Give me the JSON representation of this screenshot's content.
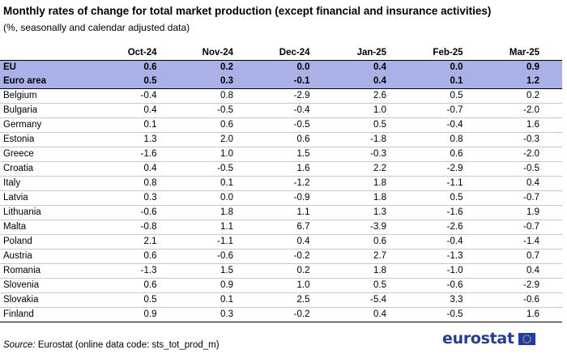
{
  "title": "Monthly rates of change for total market production (except financial and insurance activities)",
  "subtitle": "(%, seasonally and calendar adjusted data)",
  "table": {
    "columns": [
      "Oct-24",
      "Nov-24",
      "Dec-24",
      "Jan-25",
      "Feb-25",
      "Mar-25"
    ],
    "aggregates": [
      {
        "name": "EU",
        "values": [
          "0.6",
          "0.2",
          "0.0",
          "0.4",
          "0.0",
          "0.9"
        ]
      },
      {
        "name": "Euro area",
        "values": [
          "0.5",
          "0.3",
          "-0.1",
          "0.4",
          "0.1",
          "1.2"
        ]
      }
    ],
    "countries": [
      {
        "name": "Belgium",
        "values": [
          "-0.4",
          "0.8",
          "-2.9",
          "2.6",
          "0.5",
          "0.2"
        ]
      },
      {
        "name": "Bulgaria",
        "values": [
          "0.4",
          "-0.5",
          "-0.4",
          "1.0",
          "-0.7",
          "-2.0"
        ]
      },
      {
        "name": "Germany",
        "values": [
          "0.1",
          "0.6",
          "-0.5",
          "0.5",
          "-0.4",
          "1.6"
        ]
      },
      {
        "name": "Estonia",
        "values": [
          "1.3",
          "2.0",
          "0.6",
          "-1.8",
          "0.8",
          "-0.3"
        ]
      },
      {
        "name": "Greece",
        "values": [
          "-1.6",
          "1.0",
          "1.5",
          "-0.3",
          "0.6",
          "-2.0"
        ]
      },
      {
        "name": "Croatia",
        "values": [
          "0.4",
          "-0.5",
          "1.6",
          "2.2",
          "-2.9",
          "-0.5"
        ]
      },
      {
        "name": "Italy",
        "values": [
          "0.8",
          "0.1",
          "-1.2",
          "1.8",
          "-1.1",
          "0.4"
        ]
      },
      {
        "name": "Latvia",
        "values": [
          "0.3",
          "0.0",
          "-0.9",
          "1.8",
          "0.5",
          "-0.7"
        ]
      },
      {
        "name": "Lithuania",
        "values": [
          "-0.6",
          "1.8",
          "1.1",
          "1.3",
          "-1.6",
          "1.9"
        ]
      },
      {
        "name": "Malta",
        "values": [
          "-0.8",
          "1.1",
          "6.7",
          "-3.9",
          "-2.6",
          "-0.7"
        ]
      },
      {
        "name": "Poland",
        "values": [
          "2.1",
          "-1.1",
          "0.4",
          "0.6",
          "-0.4",
          "-1.4"
        ]
      },
      {
        "name": "Austria",
        "values": [
          "0.6",
          "-0.6",
          "-0.2",
          "2.7",
          "-1.3",
          "0.7"
        ]
      },
      {
        "name": "Romania",
        "values": [
          "-1.3",
          "1.5",
          "0.2",
          "1.8",
          "-1.0",
          "0.4"
        ]
      },
      {
        "name": "Slovenia",
        "values": [
          "0.6",
          "0.9",
          "1.0",
          "0.5",
          "-0.6",
          "-2.9"
        ]
      },
      {
        "name": "Slovakia",
        "values": [
          "0.5",
          "0.1",
          "2.5",
          "-5.4",
          "3.3",
          "-0.6"
        ]
      },
      {
        "name": "Finland",
        "values": [
          "0.9",
          "0.3",
          "-0.2",
          "0.4",
          "-0.5",
          "1.6"
        ]
      }
    ]
  },
  "source": {
    "label": "Source:",
    "text": "Eurostat (online data code: sts_tot_prod_m)"
  },
  "logo": {
    "text": "eurostat",
    "flag_color": "#1f3aa8",
    "star_color": "#ffd21e"
  },
  "colors": {
    "aggregate_row": "#aab1e6",
    "logo_text": "#2a3a8f"
  }
}
